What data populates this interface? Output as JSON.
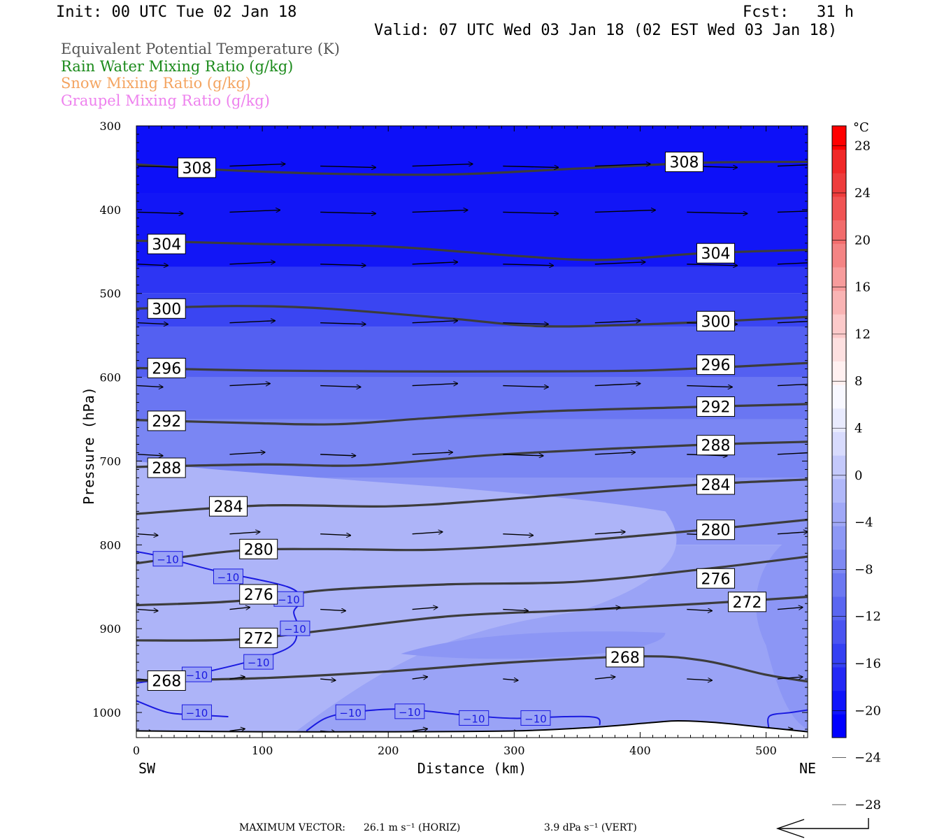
{
  "header": {
    "init": "Init: 00 UTC Tue 02 Jan 18",
    "fcst": "Fcst:   31 h",
    "valid": "Valid: 07 UTC Wed 03 Jan 18 (02 EST Wed 03 Jan 18)"
  },
  "fields": [
    {
      "label": "Equivalent Potential Temperature (K)",
      "color": "#555555"
    },
    {
      "label": "Rain Water Mixing Ratio (g/kg)",
      "color": "#1a8a1a"
    },
    {
      "label": "Snow Mixing Ratio (g/kg)",
      "color": "#f4a460"
    },
    {
      "label": "Graupel Mixing Ratio (g/kg)",
      "color": "#ee82ee"
    }
  ],
  "colorbar": {
    "unit": "°C",
    "tick_labels": [
      "28",
      "24",
      "20",
      "16",
      "12",
      "8",
      "4",
      "0",
      "-4",
      "-8",
      "-12",
      "-16",
      "-20",
      "-24",
      "-28"
    ],
    "colors": [
      "#0000ff",
      "#0f14fb",
      "#2328f6",
      "#3440f3",
      "#4a54f1",
      "#5a66f1",
      "#6c78f2",
      "#7e89f3",
      "#8d98f5",
      "#a0a8f7",
      "#b1b8f9",
      "#c4c9fb",
      "#d8dbfd",
      "#e9ebfe",
      "#f8f8ff",
      "#fff0f0",
      "#fde0e0",
      "#fccaca",
      "#f9b4b4",
      "#f79c9c",
      "#f48484",
      "#f26c6c",
      "#f05454",
      "#ee3c3c",
      "#f02828",
      "#ff0000"
    ]
  },
  "footer": {
    "max_vector_label": "MAXIMUM VECTOR:",
    "horiz": "26.1 m s⁻¹ (HORIZ)",
    "vert": "3.9 dPa s⁻¹ (VERT)"
  },
  "chart_data": {
    "type": "contour-cross-section",
    "xlabel": "Distance (km)",
    "ylabel": "Pressure (hPa)",
    "xlim": [
      0,
      533
    ],
    "ylim": [
      1030,
      300
    ],
    "y_scale": "linear",
    "x_ticks": [
      0,
      100,
      200,
      300,
      400,
      500
    ],
    "y_ticks": [
      300,
      400,
      500,
      600,
      700,
      800,
      900,
      1000
    ],
    "x_end_labels": {
      "left": "SW",
      "right": "NE"
    },
    "theta_e_contours": [
      {
        "level": "308",
        "points": [
          [
            0,
            346
          ],
          [
            60,
            352
          ],
          [
            150,
            357
          ],
          [
            250,
            358
          ],
          [
            350,
            351
          ],
          [
            450,
            344
          ],
          [
            533,
            343
          ]
        ],
        "labels": [
          [
            48,
            350
          ],
          [
            435,
            343
          ]
        ]
      },
      {
        "level": "304",
        "points": [
          [
            0,
            437
          ],
          [
            100,
            441
          ],
          [
            200,
            444
          ],
          [
            300,
            455
          ],
          [
            370,
            460
          ],
          [
            450,
            452
          ],
          [
            533,
            448
          ]
        ],
        "labels": [
          [
            24,
            441
          ],
          [
            460,
            452
          ]
        ]
      },
      {
        "level": "300",
        "points": [
          [
            0,
            518
          ],
          [
            80,
            515
          ],
          [
            150,
            518
          ],
          [
            250,
            530
          ],
          [
            320,
            539
          ],
          [
            400,
            537
          ],
          [
            480,
            532
          ],
          [
            533,
            528
          ]
        ],
        "labels": [
          [
            24,
            518
          ],
          [
            460,
            533
          ]
        ]
      },
      {
        "level": "296",
        "points": [
          [
            0,
            589
          ],
          [
            100,
            592
          ],
          [
            200,
            593
          ],
          [
            300,
            593
          ],
          [
            400,
            592
          ],
          [
            480,
            587
          ],
          [
            533,
            583
          ]
        ],
        "labels": [
          [
            24,
            589
          ],
          [
            460,
            585
          ]
        ]
      },
      {
        "level": "292",
        "points": [
          [
            0,
            651
          ],
          [
            100,
            655
          ],
          [
            160,
            656
          ],
          [
            230,
            649
          ],
          [
            320,
            641
          ],
          [
            430,
            636
          ],
          [
            533,
            632
          ]
        ],
        "labels": [
          [
            24,
            652
          ],
          [
            460,
            635
          ]
        ]
      },
      {
        "level": "288",
        "points": [
          [
            0,
            707
          ],
          [
            100,
            704
          ],
          [
            180,
            705
          ],
          [
            280,
            693
          ],
          [
            380,
            685
          ],
          [
            460,
            680
          ],
          [
            533,
            677
          ]
        ],
        "labels": [
          [
            24,
            708
          ],
          [
            460,
            681
          ]
        ]
      },
      {
        "level": "284",
        "points": [
          [
            0,
            763
          ],
          [
            100,
            753
          ],
          [
            200,
            754
          ],
          [
            280,
            747
          ],
          [
            380,
            735
          ],
          [
            460,
            727
          ],
          [
            533,
            722
          ]
        ],
        "labels": [
          [
            73,
            754
          ],
          [
            460,
            728
          ]
        ]
      },
      {
        "level": "280",
        "points": [
          [
            0,
            822
          ],
          [
            80,
            807
          ],
          [
            150,
            805
          ],
          [
            230,
            806
          ],
          [
            310,
            800
          ],
          [
            400,
            789
          ],
          [
            480,
            778
          ],
          [
            533,
            770
          ]
        ],
        "labels": [
          [
            97,
            805
          ],
          [
            460,
            782
          ]
        ]
      },
      {
        "level": "276",
        "points": [
          [
            0,
            872
          ],
          [
            80,
            867
          ],
          [
            150,
            854
          ],
          [
            250,
            847
          ],
          [
            350,
            844
          ],
          [
            450,
            829
          ],
          [
            533,
            814
          ]
        ],
        "labels": [
          [
            97,
            859
          ],
          [
            460,
            840
          ]
        ]
      },
      {
        "level": "272",
        "points": [
          [
            0,
            914
          ],
          [
            80,
            913
          ],
          [
            150,
            902
          ],
          [
            250,
            885
          ],
          [
            350,
            878
          ],
          [
            450,
            870
          ],
          [
            533,
            862
          ]
        ],
        "labels": [
          [
            97,
            911
          ],
          [
            485,
            868
          ]
        ]
      },
      {
        "level": "268",
        "points": [
          [
            0,
            962
          ],
          [
            100,
            959
          ],
          [
            200,
            951
          ],
          [
            300,
            940
          ],
          [
            400,
            933
          ],
          [
            450,
            938
          ],
          [
            500,
            955
          ],
          [
            533,
            963
          ]
        ],
        "labels": [
          [
            24,
            962
          ],
          [
            388,
            934
          ]
        ]
      }
    ],
    "temp_contour_minus10": [
      {
        "points": [
          [
            0,
            808
          ],
          [
            20,
            814
          ],
          [
            60,
            830
          ],
          [
            120,
            850
          ],
          [
            130,
            867
          ],
          [
            125,
            880
          ],
          [
            128,
            900
          ],
          [
            118,
            925
          ],
          [
            60,
            950
          ],
          [
            0,
            965
          ]
        ],
        "labels": [
          [
            25,
            817
          ],
          [
            73,
            838
          ],
          [
            121,
            865
          ],
          [
            126,
            900
          ],
          [
            97,
            940
          ],
          [
            48,
            955
          ]
        ]
      },
      {
        "points": [
          [
            0,
            986
          ],
          [
            25,
            1000
          ],
          [
            50,
            1003
          ],
          [
            73,
            1005
          ]
        ],
        "labels": [
          [
            48,
            1000
          ]
        ]
      },
      {
        "points": [
          [
            135,
            1022
          ],
          [
            150,
            1007
          ],
          [
            170,
            1000
          ],
          [
            210,
            996
          ],
          [
            260,
            1003
          ],
          [
            300,
            1007
          ],
          [
            340,
            1005
          ],
          [
            365,
            1006
          ],
          [
            368,
            1015
          ]
        ],
        "labels": [
          [
            170,
            1000
          ],
          [
            217,
            999
          ],
          [
            268,
            1007
          ],
          [
            317,
            1007
          ]
        ]
      },
      {
        "points": [
          [
            502,
            1018
          ],
          [
            503,
            1004
          ],
          [
            520,
            1000
          ],
          [
            533,
            997
          ]
        ],
        "labels": []
      }
    ],
    "temp_contour_label": "-10",
    "terrain_pressure_hPa": [
      [
        0,
        1022
      ],
      [
        100,
        1023
      ],
      [
        200,
        1023
      ],
      [
        300,
        1022
      ],
      [
        360,
        1018
      ],
      [
        410,
        1012
      ],
      [
        430,
        1010
      ],
      [
        460,
        1012
      ],
      [
        500,
        1018
      ],
      [
        533,
        1023
      ]
    ],
    "wind_vectors": [
      {
        "p": 348,
        "xs": [
          0,
          73,
          145,
          218,
          290,
          363,
          436,
          508
        ],
        "lens": [
          1.0,
          1.1,
          1.1,
          1.2,
          1.1,
          1.1,
          1.0,
          1.0
        ]
      },
      {
        "p": 403,
        "xs": [
          0,
          73,
          145,
          218,
          290,
          363,
          436,
          508
        ],
        "lens": [
          0.9,
          1.0,
          1.1,
          1.1,
          1.1,
          1.2,
          1.2,
          1.2
        ]
      },
      {
        "p": 465,
        "xs": [
          0,
          73,
          145,
          218,
          290,
          363,
          436,
          508
        ],
        "lens": [
          0.6,
          0.9,
          0.9,
          0.9,
          1.0,
          1.0,
          1.0,
          1.0
        ]
      },
      {
        "p": 535,
        "xs": [
          0,
          73,
          145,
          218,
          290,
          363,
          436,
          508
        ],
        "lens": [
          0.6,
          0.9,
          0.9,
          0.9,
          0.9,
          0.9,
          1.0,
          0.9
        ]
      },
      {
        "p": 610,
        "xs": [
          0,
          73,
          145,
          218,
          290,
          363,
          436,
          508
        ],
        "lens": [
          0.5,
          0.8,
          0.8,
          0.9,
          0.9,
          0.9,
          0.9,
          0.9
        ]
      },
      {
        "p": 692,
        "xs": [
          0,
          73,
          145,
          218,
          290,
          363,
          436,
          508
        ],
        "lens": [
          0.5,
          0.7,
          0.7,
          0.8,
          0.8,
          0.8,
          0.8,
          0.8
        ]
      },
      {
        "p": 787,
        "xs": [
          0,
          73,
          145,
          218,
          290,
          363,
          436,
          508
        ],
        "lens": [
          0.4,
          0.6,
          0.6,
          0.6,
          0.6,
          0.6,
          0.6,
          0.6
        ]
      },
      {
        "p": 877,
        "xs": [
          0,
          73,
          145,
          218,
          290,
          363,
          436,
          508
        ],
        "lens": [
          0.4,
          0.4,
          0.5,
          0.5,
          0.5,
          0.5,
          0.5,
          0.5
        ]
      },
      {
        "p": 960,
        "xs": [
          0,
          73,
          145,
          218,
          290,
          363,
          436,
          508
        ],
        "lens": [
          0.3,
          0.3,
          0.3,
          0.3,
          0.3,
          0.4,
          0.5,
          0.5
        ]
      },
      {
        "p": 1022,
        "xs": [
          0,
          73,
          145,
          218,
          290,
          363,
          436,
          508
        ],
        "lens": [
          0.3,
          0.3,
          0.3,
          0.3,
          0.3,
          0.3,
          0.3,
          0.3
        ]
      }
    ]
  }
}
